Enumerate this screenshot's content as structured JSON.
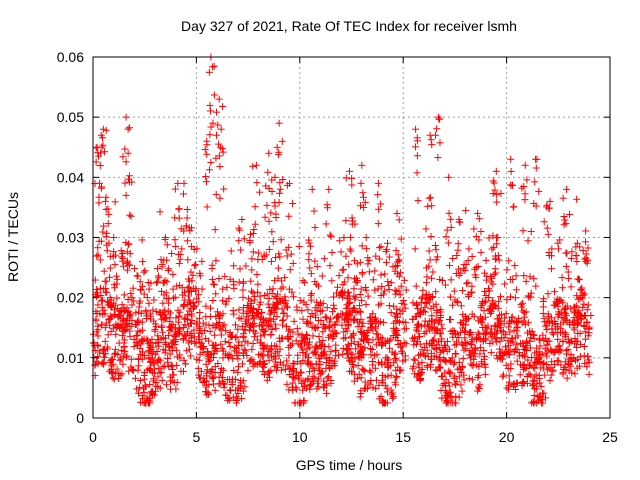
{
  "chart_data": {
    "type": "scatter",
    "title": "Day 327 of 2021, Rate Of TEC Index for receiver lsmh",
    "xlabel": "GPS time / hours",
    "ylabel": "ROTI / TECUs",
    "xlim": [
      0,
      25
    ],
    "ylim": [
      0,
      0.06
    ],
    "x_ticks": [
      "0",
      "5",
      "10",
      "15",
      "20",
      "25"
    ],
    "y_ticks": [
      "0",
      "0.01",
      "0.02",
      "0.03",
      "0.04",
      "0.05",
      "0.06"
    ],
    "grid": true,
    "marker": "+",
    "color": "#ff0000",
    "data_note": "Dense cloud of thousands of points spanning 0 to 24 h, mostly 0.005-0.02 TECU with spikes up to ~0.06 TECU; a small gap near 15.2 h. Representative sample of peak values listed below.",
    "points": [
      [
        0.2,
        0.045
      ],
      [
        0.4,
        0.047
      ],
      [
        0.5,
        0.048
      ],
      [
        0.6,
        0.036
      ],
      [
        1.0,
        0.03
      ],
      [
        1.6,
        0.05
      ],
      [
        1.7,
        0.044
      ],
      [
        1.6,
        0.037
      ],
      [
        2.4,
        0.026
      ],
      [
        3.5,
        0.03
      ],
      [
        4.1,
        0.039
      ],
      [
        4.4,
        0.039
      ],
      [
        5.5,
        0.046
      ],
      [
        5.7,
        0.06
      ],
      [
        5.8,
        0.049
      ],
      [
        6.1,
        0.053
      ],
      [
        6.2,
        0.048
      ],
      [
        7.2,
        0.033
      ],
      [
        7.9,
        0.042
      ],
      [
        8.5,
        0.044
      ],
      [
        8.8,
        0.04
      ],
      [
        9.0,
        0.049
      ],
      [
        9.5,
        0.039
      ],
      [
        10.6,
        0.038
      ],
      [
        11.4,
        0.038
      ],
      [
        12.4,
        0.041
      ],
      [
        13.0,
        0.042
      ],
      [
        13.8,
        0.039
      ],
      [
        14.2,
        0.028
      ],
      [
        14.7,
        0.034
      ],
      [
        15.6,
        0.048
      ],
      [
        16.3,
        0.047
      ],
      [
        16.7,
        0.05
      ],
      [
        17.2,
        0.04
      ],
      [
        17.7,
        0.033
      ],
      [
        18.6,
        0.034
      ],
      [
        19.5,
        0.041
      ],
      [
        20.2,
        0.043
      ],
      [
        20.9,
        0.042
      ],
      [
        21.4,
        0.043
      ],
      [
        22.1,
        0.036
      ],
      [
        22.9,
        0.038
      ],
      [
        23.4,
        0.026
      ],
      [
        23.9,
        0.018
      ]
    ]
  }
}
